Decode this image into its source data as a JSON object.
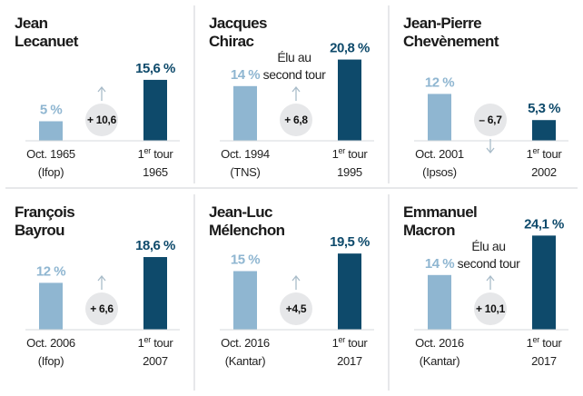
{
  "colors": {
    "before": "#8fb6d1",
    "after": "#0e4a6b",
    "circle": "#e6e7e9",
    "arrow": "#a9bcc9",
    "divider": "#cfd2d6",
    "baseline": "#d5d9dc"
  },
  "chart_data": [
    {
      "type": "bar",
      "title": "Jean Lecanuet",
      "title_lines": [
        "Jean",
        "Lecanuet"
      ],
      "categories": [
        [
          "Oct. 1965",
          "(Ifop)"
        ],
        [
          "1er tour",
          "1965"
        ]
      ],
      "values": [
        5,
        15.6
      ],
      "value_labels": [
        "5 %",
        "15,6 %"
      ],
      "delta": "+ 10,6",
      "direction": "up",
      "note": null
    },
    {
      "type": "bar",
      "title": "Jacques Chirac",
      "title_lines": [
        "Jacques",
        "Chirac"
      ],
      "categories": [
        [
          "Oct. 1994",
          "(TNS)"
        ],
        [
          "1er tour",
          "1995"
        ]
      ],
      "values": [
        14,
        20.8
      ],
      "value_labels": [
        "14 %",
        "20,8 %"
      ],
      "delta": "+ 6,8",
      "direction": "up",
      "note": [
        "Élu au",
        "second tour"
      ]
    },
    {
      "type": "bar",
      "title": "Jean-Pierre Chevènement",
      "title_lines": [
        "Jean-Pierre",
        "Chevènement"
      ],
      "categories": [
        [
          "Oct. 2001",
          "(Ipsos)"
        ],
        [
          "1er tour",
          "2002"
        ]
      ],
      "values": [
        12,
        5.3
      ],
      "value_labels": [
        "12 %",
        "5,3 %"
      ],
      "delta": "– 6,7",
      "direction": "down",
      "note": null
    },
    {
      "type": "bar",
      "title": "François Bayrou",
      "title_lines": [
        "François",
        "Bayrou"
      ],
      "categories": [
        [
          "Oct. 2006",
          "(Ifop)"
        ],
        [
          "1er tour",
          "2007"
        ]
      ],
      "values": [
        12,
        18.6
      ],
      "value_labels": [
        "12 %",
        "18,6 %"
      ],
      "delta": "+ 6,6",
      "direction": "up",
      "note": null
    },
    {
      "type": "bar",
      "title": "Jean-Luc Mélenchon",
      "title_lines": [
        "Jean-Luc",
        "Mélenchon"
      ],
      "categories": [
        [
          "Oct. 2016",
          "(Kantar)"
        ],
        [
          "1er tour",
          "2017"
        ]
      ],
      "values": [
        15,
        19.5
      ],
      "value_labels": [
        "15 %",
        "19,5 %"
      ],
      "delta": "+4,5",
      "direction": "up",
      "note": null
    },
    {
      "type": "bar",
      "title": "Emmanuel Macron",
      "title_lines": [
        "Emmanuel",
        "Macron"
      ],
      "categories": [
        [
          "Oct. 2016",
          "(Kantar)"
        ],
        [
          "1er tour",
          "2017"
        ]
      ],
      "values": [
        14,
        24.1
      ],
      "value_labels": [
        "14 %",
        "24,1 %"
      ],
      "delta": "+ 10,1",
      "direction": "up",
      "note": [
        "Élu au",
        "second tour"
      ]
    }
  ]
}
